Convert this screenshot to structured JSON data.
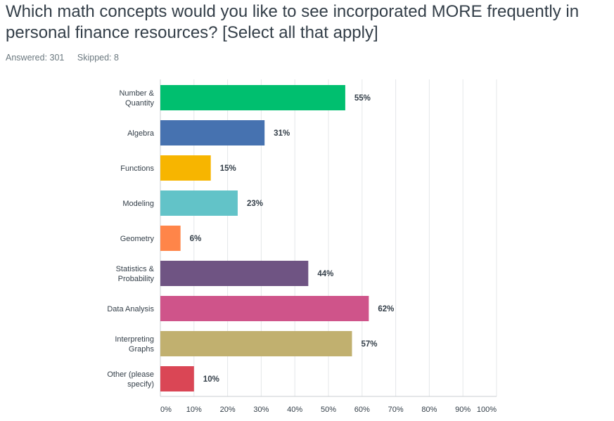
{
  "question": {
    "title": "Which math concepts would you like to see incorporated MORE frequently in personal finance resources? [Select all that apply]",
    "answered": "Answered: 301",
    "skipped": "Skipped: 8"
  },
  "chart_data": {
    "type": "bar",
    "orientation": "horizontal",
    "categories": [
      [
        "Number &",
        "Quantity"
      ],
      [
        "Algebra"
      ],
      [
        "Functions"
      ],
      [
        "Modeling"
      ],
      [
        "Geometry"
      ],
      [
        "Statistics &",
        "Probability"
      ],
      [
        "Data Analysis"
      ],
      [
        "Interpreting",
        "Graphs"
      ],
      [
        "Other (please",
        "specify)"
      ]
    ],
    "values": [
      55,
      31,
      15,
      23,
      6,
      44,
      62,
      57,
      10
    ],
    "value_labels": [
      "55%",
      "31%",
      "15%",
      "23%",
      "6%",
      "44%",
      "62%",
      "57%",
      "10%"
    ],
    "colors": [
      "#00bf6f",
      "#4672b0",
      "#f7b500",
      "#62c3c8",
      "#ff8549",
      "#6f5483",
      "#cf548a",
      "#c1b06f",
      "#da4655"
    ],
    "xlim": [
      0,
      100
    ],
    "xticks": [
      "0%",
      "10%",
      "20%",
      "30%",
      "40%",
      "50%",
      "60%",
      "70%",
      "80%",
      "90%",
      "100%"
    ],
    "grid": true
  }
}
